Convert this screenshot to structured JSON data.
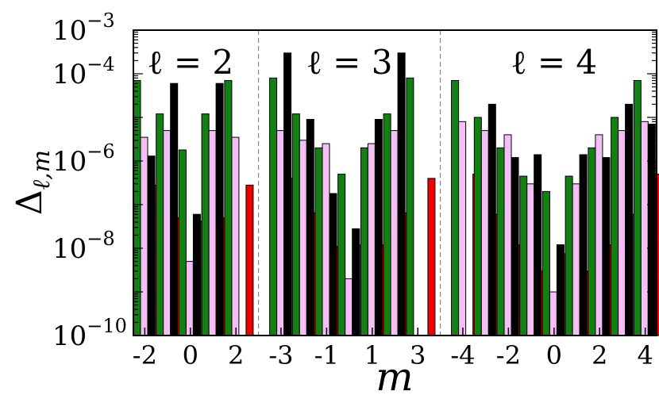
{
  "chart_data": {
    "type": "bar",
    "xlabel": "m",
    "ylabel": "Δ_{ℓ,m}",
    "yscale": "log",
    "ylim": [
      1e-10,
      0.001
    ],
    "yticks": [
      {
        "base": "10",
        "exp": "−10"
      },
      {
        "base": "10",
        "exp": "−8"
      },
      {
        "base": "10",
        "exp": "−6"
      },
      {
        "base": "10",
        "exp": "−4"
      },
      {
        "base": "10",
        "exp": "−3"
      }
    ],
    "panel_labels": [
      "ℓ = 2",
      "ℓ = 3",
      "ℓ = 4"
    ],
    "series_colors": [
      "#138013",
      "#f4bff4",
      "#000000",
      "#ee0000"
    ],
    "groups": [
      {
        "ell": 2,
        "m": [
          -2,
          -1,
          0,
          1,
          2
        ],
        "xticks": [
          "-2",
          "0",
          "2"
        ],
        "series": [
          {
            "values": [
              7e-05,
              1.2e-05,
              1.8e-06,
              1.2e-05,
              7e-05
            ]
          },
          {
            "values": [
              3.5e-06,
              5e-06,
              5e-09,
              5e-06,
              3.5e-06
            ]
          },
          {
            "values": [
              1.3e-06,
              6e-05,
              6e-08,
              6e-05,
              null
            ]
          },
          {
            "values": [
              2.8e-07,
              5e-08,
              4.2e-08,
              5e-08,
              2.8e-07
            ]
          }
        ]
      },
      {
        "ell": 3,
        "m": [
          -3,
          -2,
          -1,
          0,
          1,
          2,
          3
        ],
        "xticks": [
          "-3",
          "-1",
          "1",
          "3"
        ],
        "series": [
          {
            "values": [
              8e-05,
              1.2e-05,
              2e-06,
              5e-07,
              2e-06,
              1.2e-05,
              8e-05
            ]
          },
          {
            "values": [
              5e-06,
              3e-06,
              2.5e-06,
              2e-09,
              2.5e-06,
              5e-06,
              null
            ]
          },
          {
            "values": [
              0.0003,
              9e-06,
              1.8e-07,
              2.8e-08,
              9e-06,
              0.0003,
              null
            ]
          },
          {
            "values": [
              4e-07,
              6.5e-08,
              1.1e-08,
              1.2e-08,
              1.2e-08,
              6.5e-08,
              4e-07
            ]
          }
        ]
      },
      {
        "ell": 4,
        "m": [
          -4,
          -3,
          -2,
          -1,
          0,
          1,
          2,
          3,
          4
        ],
        "xticks": [
          "-4",
          "-2",
          "0",
          "2",
          "4"
        ],
        "series": [
          {
            "values": [
              7e-05,
              1e-05,
              2e-06,
              4.5e-07,
              2e-07,
              4.5e-07,
              2e-06,
              1e-05,
              7e-05
            ]
          },
          {
            "values": [
              8e-06,
              5e-06,
              4e-06,
              3e-07,
              1e-09,
              3e-07,
              4e-06,
              5e-06,
              8e-06
            ]
          },
          {
            "values": [
              null,
              2e-05,
              1.2e-06,
              1.4e-06,
              1.2e-08,
              1.4e-06,
              1.2e-06,
              2e-05,
              7e-06
            ]
          },
          {
            "values": [
              5e-07,
              6e-08,
              1.2e-08,
              3e-09,
              7.5e-09,
              3e-09,
              1.2e-08,
              6e-08,
              5e-07
            ]
          }
        ]
      }
    ]
  }
}
